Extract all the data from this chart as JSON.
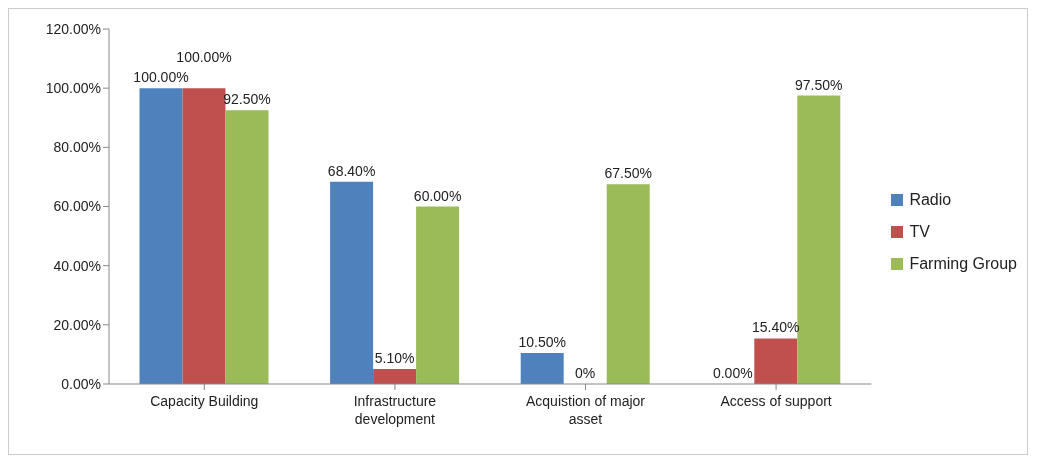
{
  "chart_data": {
    "type": "bar",
    "categories": [
      "Capacity Building",
      "Infrastructure development",
      "Acquistion of major asset",
      "Access of support"
    ],
    "series": [
      {
        "name": "Radio",
        "color": "#4f81bd",
        "values": [
          100,
          68.4,
          10.5,
          0
        ],
        "value_labels": [
          "100.00%",
          "68.40%",
          "10.50%",
          "0.00%"
        ]
      },
      {
        "name": "TV",
        "color": "#c0504d",
        "values": [
          100,
          5.1,
          0,
          15.4
        ],
        "value_labels": [
          "100.00%",
          "5.10%",
          "0%",
          "15.40%"
        ]
      },
      {
        "name": "Farming Group",
        "color": "#9bbb59",
        "values": [
          92.5,
          60,
          67.5,
          97.5
        ],
        "value_labels": [
          "92.50%",
          "60.00%",
          "67.50%",
          "97.50%"
        ]
      }
    ],
    "ylim": [
      0,
      120
    ],
    "yticks": [
      {
        "value": 0,
        "label": "0.00%"
      },
      {
        "value": 20,
        "label": "20.00%"
      },
      {
        "value": 40,
        "label": "40.00%"
      },
      {
        "value": 60,
        "label": "60.00%"
      },
      {
        "value": 80,
        "label": "80.00%"
      },
      {
        "value": 100,
        "label": "100.00%"
      },
      {
        "value": 120,
        "label": "120.00%"
      }
    ],
    "grid": false,
    "legend": "right"
  }
}
